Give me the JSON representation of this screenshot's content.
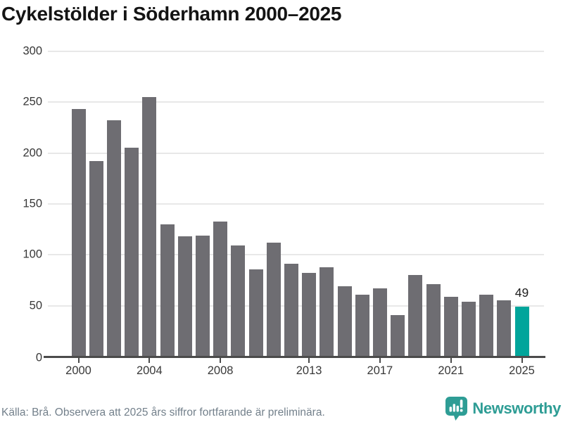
{
  "title": "Cykelstölder i Söderhamn 2000–2025",
  "footer": {
    "source": "Källa: Brå. Observera att 2025 års siffror fortfarande är preliminära.",
    "brand": "Newsworthy"
  },
  "colors": {
    "bar": "#6e6d72",
    "highlight_bar": "#00a59b",
    "axis": "#4b4b4b",
    "gridline": "#e8e8e8",
    "tick_label": "#383838",
    "title_text": "#141414",
    "source_text": "#73808b",
    "brand_teal": "#2e9d95"
  },
  "chart_data": {
    "type": "bar",
    "title": "Cykelstölder i Söderhamn 2000–2025",
    "categories": [
      2000,
      2001,
      2002,
      2003,
      2004,
      2005,
      2006,
      2007,
      2008,
      2009,
      2010,
      2011,
      2012,
      2013,
      2014,
      2015,
      2016,
      2017,
      2018,
      2019,
      2020,
      2021,
      2022,
      2023,
      2024,
      2025
    ],
    "values": [
      243,
      192,
      232,
      205,
      255,
      130,
      118,
      119,
      133,
      109,
      86,
      112,
      91,
      82,
      88,
      69,
      61,
      67,
      41,
      80,
      71,
      59,
      54,
      61,
      55,
      49
    ],
    "highlight_index": 25,
    "highlight_label": "49",
    "xlabel": "",
    "ylabel": "",
    "ylim": [
      0,
      300
    ],
    "yticks": [
      0,
      50,
      100,
      150,
      200,
      250,
      300
    ],
    "xticks": [
      2000,
      2004,
      2008,
      2013,
      2017,
      2021,
      2025
    ],
    "grid": true,
    "legend": "none",
    "note": "2025 bar highlighted in teal with data label 49; all other bars gray"
  }
}
